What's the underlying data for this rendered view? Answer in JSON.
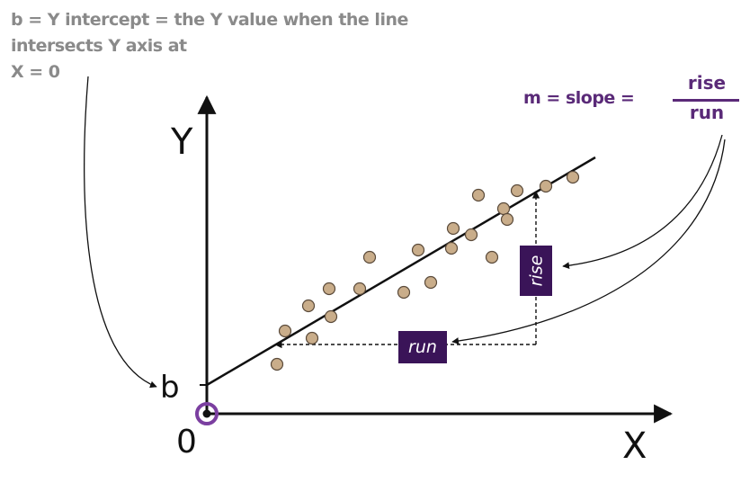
{
  "intercept_note": {
    "line1": "b = Y intercept = the Y value when the line",
    "line2": "intersects Y axis at",
    "line3": "X = 0"
  },
  "slope": {
    "label": "m = slope =",
    "numerator": "rise",
    "denominator": "run"
  },
  "axes": {
    "y_label": "Y",
    "x_label": "X",
    "origin_label": "0",
    "intercept_label": "b"
  },
  "tags": {
    "run": "run",
    "rise": "rise"
  },
  "colors": {
    "text_gray": "#8a8a8a",
    "accent_purple": "#5a2a78",
    "tag_fill": "#3a1458",
    "point_fill": "#c9ad8a",
    "point_stroke": "#5a4a3a",
    "origin_ring": "#7b3fa0",
    "axis": "#111111"
  }
}
